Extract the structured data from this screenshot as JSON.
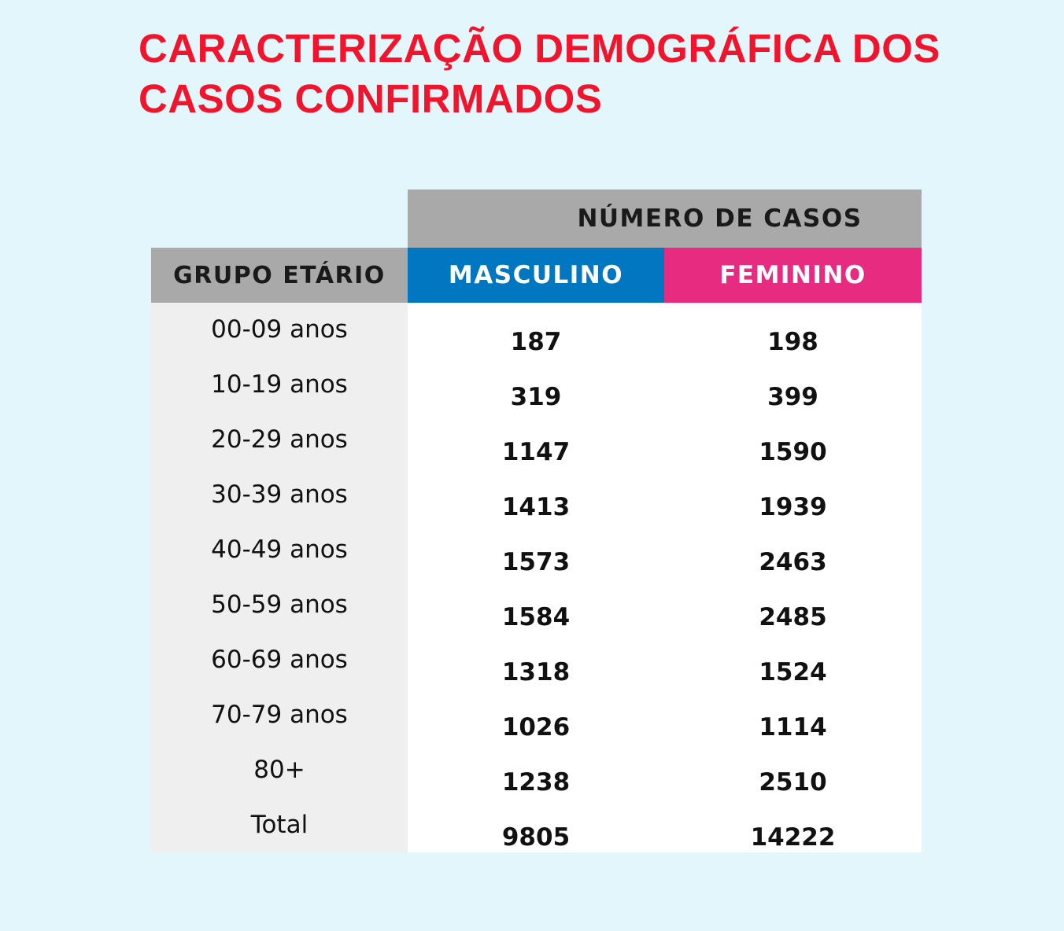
{
  "title": "CARACTERIZAÇÃO DEMOGRÁFICA DOS CASOS CONFIRMADOS",
  "chart_data": {
    "type": "table",
    "title": "CARACTERIZAÇÃO DEMOGRÁFICA DOS CASOS CONFIRMADOS",
    "group_header": "NÚMERO DE CASOS",
    "row_header": "GRUPO ETÁRIO",
    "columns": [
      "MASCULINO",
      "FEMININO"
    ],
    "column_colors": [
      "#0077c0",
      "#e72b81"
    ],
    "rows": [
      {
        "grupo": "00-09 anos",
        "masculino": "187",
        "feminino": "198"
      },
      {
        "grupo": "10-19 anos",
        "masculino": "319",
        "feminino": "399"
      },
      {
        "grupo": "20-29 anos",
        "masculino": "1147",
        "feminino": "1590"
      },
      {
        "grupo": "30-39 anos",
        "masculino": "1413",
        "feminino": "1939"
      },
      {
        "grupo": "40-49 anos",
        "masculino": "1573",
        "feminino": "2463"
      },
      {
        "grupo": "50-59 anos",
        "masculino": "1584",
        "feminino": "2485"
      },
      {
        "grupo": "60-69 anos",
        "masculino": "1318",
        "feminino": "1524"
      },
      {
        "grupo": "70-79 anos",
        "masculino": "1026",
        "feminino": "1114"
      },
      {
        "grupo": "80+",
        "masculino": "1238",
        "feminino": "2510"
      },
      {
        "grupo": "Total",
        "masculino": "9805",
        "feminino": "14222"
      }
    ]
  },
  "colors": {
    "background": "#e2f6fc",
    "title": "#f0142d",
    "header_gray": "#a9a9a9"
  }
}
